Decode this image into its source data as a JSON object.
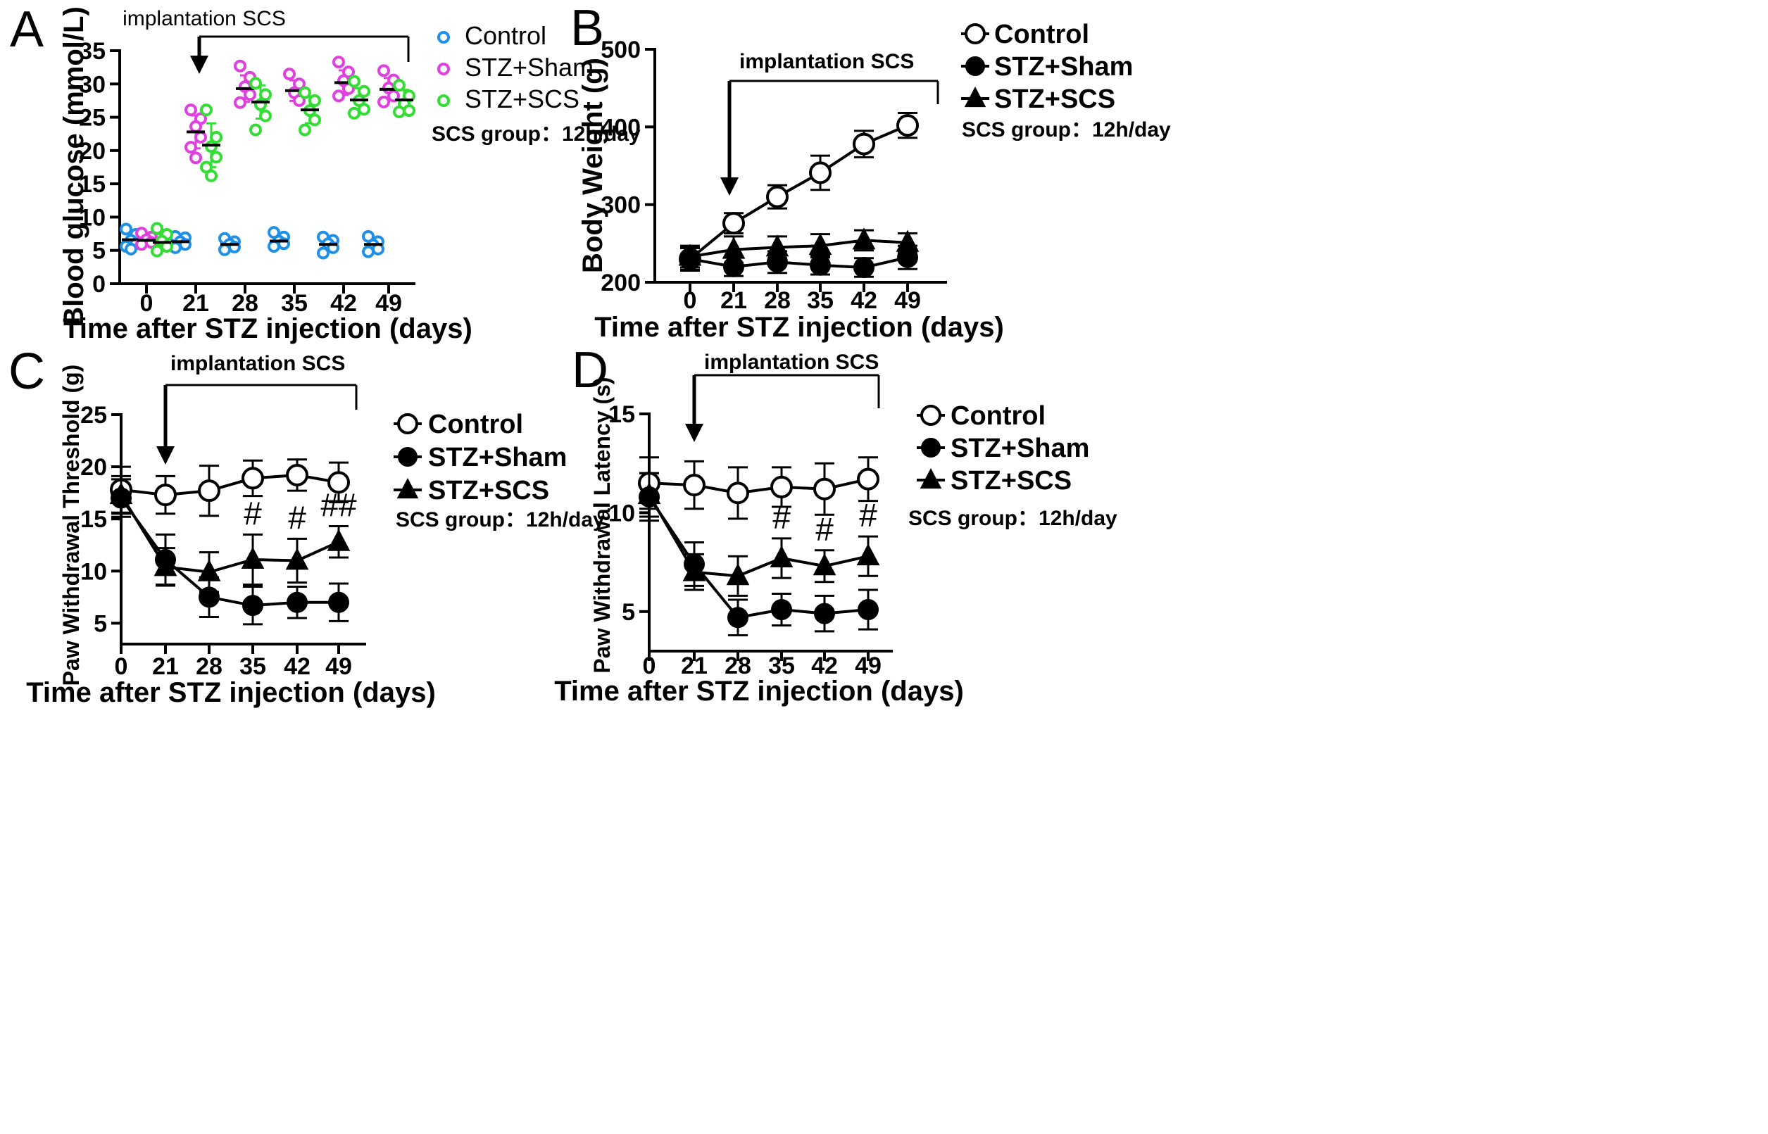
{
  "chart_data": [
    {
      "panel": "A",
      "type": "scatter",
      "xlabel": "Time after STZ injection (days)",
      "ylabel": "Blood glucose (mmol/L)",
      "categories": [
        "0",
        "21",
        "28",
        "35",
        "42",
        "49"
      ],
      "ylim": [
        0,
        35
      ],
      "yticks": [
        0,
        5,
        10,
        15,
        20,
        25,
        30,
        35
      ],
      "annotation": "implantation SCS",
      "note": "SCS group：12h/day",
      "legend_position": "top-right",
      "series": [
        {
          "name": "Control",
          "color": "#1E90E8",
          "marker": "open-circle",
          "means": [
            6.6,
            6.3,
            5.9,
            6.4,
            5.9,
            5.9
          ],
          "points": [
            [
              8.2,
              7.4,
              6.5,
              6.0,
              5.6,
              5.2
            ],
            [
              7.1,
              6.9,
              6.3,
              5.9,
              5.4
            ],
            [
              6.8,
              6.3,
              5.9,
              5.5,
              5.1
            ],
            [
              7.7,
              7.0,
              6.4,
              6.0,
              5.6
            ],
            [
              7.0,
              6.5,
              6.0,
              5.4,
              4.6
            ],
            [
              7.1,
              6.3,
              5.8,
              5.2,
              4.8
            ]
          ]
        },
        {
          "name": "STZ+Sham",
          "color": "#E040E0",
          "marker": "open-circle",
          "means": [
            6.5,
            22.8,
            29.3,
            29.0,
            30.2,
            29.2
          ],
          "points": [
            [
              7.6,
              7.0,
              6.6,
              6.2,
              5.9
            ],
            [
              26.1,
              24.8,
              23.6,
              22.0,
              20.5,
              18.9
            ],
            [
              32.7,
              31.0,
              29.6,
              28.4,
              27.2
            ],
            [
              31.5,
              30.0,
              28.7,
              27.5
            ],
            [
              33.3,
              31.8,
              30.5,
              29.3,
              28.2
            ],
            [
              32.0,
              30.6,
              29.4,
              28.2,
              27.3
            ]
          ]
        },
        {
          "name": "STZ+SCS",
          "color": "#33DD33",
          "marker": "open-circle",
          "means": [
            6.2,
            20.8,
            27.3,
            26.1,
            27.6,
            27.6
          ],
          "points": [
            [
              8.3,
              7.4,
              6.4,
              5.6,
              4.9
            ],
            [
              26.1,
              22.0,
              20.6,
              19.0,
              17.5,
              16.2
            ],
            [
              30.1,
              28.4,
              26.9,
              25.2,
              23.1
            ],
            [
              28.7,
              27.5,
              26.0,
              24.6,
              23.1
            ],
            [
              30.4,
              28.9,
              27.5,
              26.2,
              25.6
            ],
            [
              29.8,
              28.2,
              27.0,
              26.0,
              25.8
            ]
          ]
        }
      ]
    },
    {
      "panel": "B",
      "type": "line",
      "xlabel": "Time after STZ injection (days)",
      "ylabel": "Body Weight (g)",
      "x": [
        0,
        21,
        28,
        35,
        42,
        49
      ],
      "categories": [
        "0",
        "21",
        "28",
        "35",
        "42",
        "49"
      ],
      "ylim": [
        200,
        500
      ],
      "yticks": [
        200,
        300,
        400,
        500
      ],
      "annotation": "implantation SCS",
      "note": "SCS group：12h/day",
      "legend_position": "top-right",
      "series": [
        {
          "name": "Control",
          "marker": "open-circle",
          "values": [
            230,
            276,
            310,
            341,
            378,
            402
          ],
          "errors": [
            14,
            13,
            15,
            22,
            17,
            16
          ]
        },
        {
          "name": "STZ+Sham",
          "marker": "filled-circle",
          "values": [
            230,
            220,
            226,
            222,
            219,
            232
          ],
          "errors": [
            15,
            12,
            14,
            12,
            12,
            15
          ]
        },
        {
          "name": "STZ+SCS",
          "marker": "filled-triangle",
          "values": [
            233,
            242,
            245,
            247,
            254,
            251
          ],
          "errors": [
            14,
            17,
            14,
            15,
            13,
            12
          ]
        }
      ]
    },
    {
      "panel": "C",
      "type": "line",
      "xlabel": "Time after STZ injection (days)",
      "ylabel": "Paw Withdrawal Threshold (g)",
      "x": [
        0,
        21,
        28,
        35,
        42,
        49
      ],
      "categories": [
        "0",
        "21",
        "28",
        "35",
        "42",
        "49"
      ],
      "ylim": [
        3,
        25
      ],
      "yticks": [
        5,
        10,
        15,
        20,
        25
      ],
      "annotation": "implantation SCS",
      "note": "SCS group：12h/day",
      "legend_position": "top-right",
      "significance": [
        "",
        "",
        "",
        "#",
        "#",
        "##"
      ],
      "series": [
        {
          "name": "Control",
          "marker": "open-circle",
          "values": [
            17.8,
            17.3,
            17.7,
            18.9,
            19.2,
            18.5
          ],
          "errors": [
            2.2,
            1.8,
            2.4,
            1.7,
            1.5,
            1.9
          ]
        },
        {
          "name": "STZ+Sham",
          "marker": "filled-circle",
          "values": [
            17.0,
            11.1,
            7.5,
            6.7,
            7.0,
            7.0
          ],
          "errors": [
            1.8,
            2.4,
            1.9,
            1.8,
            1.5,
            1.8
          ]
        },
        {
          "name": "STZ+SCS",
          "marker": "filled-triangle",
          "values": [
            17.3,
            10.4,
            9.9,
            11.1,
            11.0,
            12.8
          ],
          "errors": [
            1.8,
            1.8,
            1.9,
            2.4,
            2.1,
            1.5
          ]
        }
      ]
    },
    {
      "panel": "D",
      "type": "line",
      "xlabel": "Time after STZ injection (days)",
      "ylabel": "Paw Withdrawal Latency (s)",
      "x": [
        0,
        21,
        28,
        35,
        42,
        49
      ],
      "categories": [
        "0",
        "21",
        "28",
        "35",
        "42",
        "49"
      ],
      "ylim": [
        3,
        15
      ],
      "yticks": [
        5,
        10,
        15
      ],
      "annotation": "implantation SCS",
      "note": "SCS group：12h/day",
      "legend_position": "top-right",
      "significance": [
        "",
        "",
        "",
        "#",
        "#",
        "#"
      ],
      "series": [
        {
          "name": "Control",
          "marker": "open-circle",
          "values": [
            11.5,
            11.4,
            11.0,
            11.3,
            11.2,
            11.7
          ],
          "errors": [
            1.3,
            1.2,
            1.3,
            1.0,
            1.3,
            1.1
          ]
        },
        {
          "name": "STZ+Sham",
          "marker": "filled-circle",
          "values": [
            10.8,
            7.4,
            4.7,
            5.1,
            4.9,
            5.1
          ],
          "errors": [
            1.2,
            1.1,
            0.9,
            0.8,
            0.9,
            1.0
          ]
        },
        {
          "name": "STZ+SCS",
          "marker": "filled-triangle",
          "values": [
            10.9,
            7.0,
            6.8,
            7.7,
            7.3,
            7.8
          ],
          "errors": [
            1.1,
            0.9,
            1.0,
            1.0,
            0.8,
            1.0
          ]
        }
      ]
    }
  ]
}
